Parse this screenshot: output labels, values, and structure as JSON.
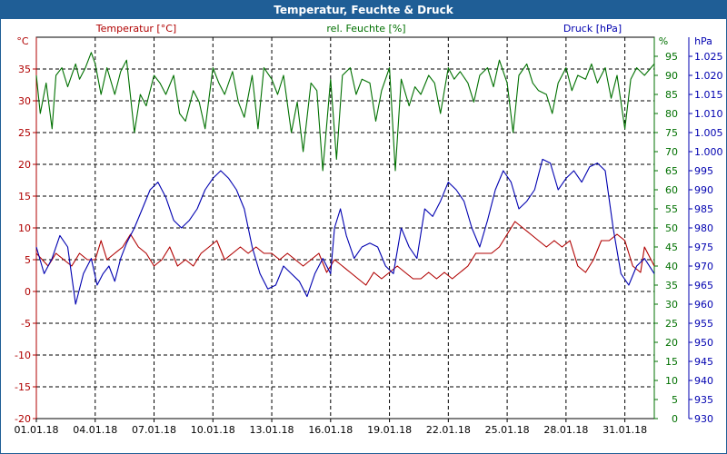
{
  "chart_data": {
    "type": "line",
    "title": "Temperatur, Feuchte & Druck",
    "colors": {
      "temperature": "#b00000",
      "humidity": "#007000",
      "pressure": "#0000b0",
      "title_bar": "#1f5e96",
      "grid": "#000000"
    },
    "axes": {
      "temperature": {
        "label": "Temperatur [°C]",
        "unit": "°C",
        "range": [
          -20,
          40
        ],
        "ticks": [
          "35",
          "30",
          "25",
          "20",
          "15",
          "10",
          "5",
          "0",
          "-5",
          "-10",
          "-15",
          "-20"
        ]
      },
      "humidity": {
        "label": "rel. Feuchte [%]",
        "unit": "%",
        "range": [
          0,
          100
        ],
        "ticks": [
          "95",
          "90",
          "85",
          "80",
          "75",
          "70",
          "65",
          "60",
          "55",
          "50",
          "45",
          "40",
          "35",
          "30",
          "25",
          "20",
          "15",
          "10",
          "5",
          "0"
        ]
      },
      "pressure": {
        "label": "Druck [hPa]",
        "unit": "hPa",
        "range": [
          930,
          1030
        ],
        "ticks": [
          "1.025",
          "1.020",
          "1.015",
          "1.010",
          "1.005",
          "1.000",
          "995",
          "990",
          "985",
          "980",
          "975",
          "970",
          "965",
          "960",
          "955",
          "950",
          "945",
          "940",
          "935",
          "930"
        ]
      }
    },
    "x_ticks": [
      "01.01.18",
      "04.01.18",
      "07.01.18",
      "10.01.18",
      "13.01.18",
      "16.01.18",
      "19.01.18",
      "22.01.18",
      "25.01.18",
      "28.01.18",
      "31.01.18"
    ],
    "x_day_range": [
      0,
      31.5
    ],
    "series": [
      {
        "name": "Temperatur",
        "axis": "temperature",
        "day": [
          0,
          0.3,
          0.6,
          1,
          1.4,
          1.8,
          2.2,
          2.6,
          3,
          3.3,
          3.6,
          4,
          4.4,
          4.8,
          5.2,
          5.6,
          6,
          6.4,
          6.8,
          7.2,
          7.6,
          8,
          8.4,
          8.8,
          9.2,
          9.6,
          10,
          10.4,
          10.8,
          11.2,
          11.6,
          12,
          12.4,
          12.8,
          13.2,
          13.6,
          14,
          14.4,
          14.8,
          15.2,
          15.6,
          16,
          16.4,
          16.8,
          17.2,
          17.6,
          18,
          18.4,
          18.8,
          19.2,
          19.6,
          20,
          20.4,
          20.8,
          21.2,
          21.6,
          22,
          22.4,
          22.8,
          23.2,
          23.6,
          24,
          24.4,
          24.8,
          25.2,
          25.6,
          26,
          26.4,
          26.8,
          27.2,
          27.6,
          28,
          28.4,
          28.8,
          29.2,
          29.6,
          30,
          30.4,
          30.8,
          31,
          31.5
        ],
        "values": [
          6,
          5,
          4,
          6,
          5,
          4,
          6,
          5,
          5,
          8,
          5,
          6,
          7,
          9,
          7,
          6,
          4,
          5,
          7,
          4,
          5,
          4,
          6,
          7,
          8,
          5,
          6,
          7,
          6,
          7,
          6,
          6,
          5,
          6,
          5,
          4,
          5,
          6,
          3,
          5,
          4,
          3,
          2,
          1,
          3,
          2,
          3,
          4,
          3,
          2,
          2,
          3,
          2,
          3,
          2,
          3,
          4,
          6,
          6,
          6,
          7,
          9,
          11,
          10,
          9,
          8,
          7,
          8,
          7,
          8,
          4,
          3,
          5,
          8,
          8,
          9,
          8,
          4,
          3,
          7,
          4
        ]
      },
      {
        "name": "rel. Feuchte",
        "axis": "humidity",
        "day": [
          0,
          0.2,
          0.5,
          0.8,
          1,
          1.3,
          1.6,
          2,
          2.2,
          2.5,
          2.8,
          3,
          3.3,
          3.6,
          4,
          4.3,
          4.6,
          5,
          5.3,
          5.6,
          6,
          6.3,
          6.6,
          7,
          7.3,
          7.6,
          8,
          8.3,
          8.6,
          9,
          9.3,
          9.6,
          10,
          10.3,
          10.6,
          11,
          11.3,
          11.6,
          12,
          12.3,
          12.6,
          13,
          13.3,
          13.6,
          14,
          14.3,
          14.6,
          15,
          15.3,
          15.6,
          16,
          16.3,
          16.6,
          17,
          17.3,
          17.6,
          18,
          18.3,
          18.6,
          19,
          19.3,
          19.6,
          20,
          20.3,
          20.6,
          21,
          21.3,
          21.6,
          22,
          22.3,
          22.6,
          23,
          23.3,
          23.6,
          24,
          24.3,
          24.6,
          25,
          25.3,
          25.6,
          26,
          26.3,
          26.6,
          27,
          27.3,
          27.6,
          28,
          28.3,
          28.6,
          29,
          29.3,
          29.6,
          30,
          30.3,
          30.6,
          31,
          31.5
        ],
        "values": [
          90,
          80,
          88,
          76,
          90,
          92,
          87,
          93,
          89,
          92,
          96,
          93,
          85,
          92,
          85,
          91,
          94,
          75,
          85,
          82,
          90,
          88,
          85,
          90,
          80,
          78,
          86,
          83,
          76,
          92,
          88,
          85,
          91,
          83,
          79,
          90,
          76,
          92,
          89,
          85,
          90,
          75,
          83,
          70,
          88,
          86,
          65,
          89,
          68,
          90,
          92,
          85,
          89,
          88,
          78,
          86,
          92,
          65,
          89,
          82,
          87,
          85,
          90,
          88,
          80,
          92,
          89,
          91,
          88,
          83,
          90,
          92,
          87,
          94,
          88,
          75,
          90,
          93,
          88,
          86,
          85,
          80,
          88,
          92,
          86,
          90,
          89,
          93,
          88,
          92,
          84,
          90,
          76,
          89,
          92,
          90,
          93
        ]
      },
      {
        "name": "Druck",
        "axis": "pressure",
        "day": [
          0,
          0.4,
          0.8,
          1.2,
          1.6,
          2,
          2.4,
          2.8,
          3.1,
          3.4,
          3.7,
          4,
          4.3,
          4.6,
          5,
          5.4,
          5.8,
          6.2,
          6.6,
          7,
          7.4,
          7.8,
          8.2,
          8.6,
          9,
          9.4,
          9.8,
          10.2,
          10.6,
          11,
          11.4,
          11.8,
          12.2,
          12.6,
          13,
          13.4,
          13.8,
          14.2,
          14.6,
          15,
          15.2,
          15.5,
          15.8,
          16.2,
          16.6,
          17,
          17.4,
          17.8,
          18.2,
          18.6,
          19,
          19.4,
          19.8,
          20.2,
          20.6,
          21,
          21.4,
          21.8,
          22.2,
          22.6,
          23,
          23.4,
          23.8,
          24.2,
          24.6,
          25,
          25.4,
          25.8,
          26.2,
          26.6,
          27,
          27.4,
          27.8,
          28.2,
          28.6,
          29,
          29.4,
          29.8,
          30.2,
          30.6,
          31,
          31.5
        ],
        "values": [
          975,
          968,
          972,
          978,
          975,
          960,
          968,
          972,
          965,
          968,
          970,
          966,
          972,
          976,
          980,
          985,
          990,
          992,
          988,
          982,
          980,
          982,
          985,
          990,
          993,
          995,
          993,
          990,
          985,
          975,
          968,
          964,
          965,
          970,
          968,
          966,
          962,
          968,
          972,
          968,
          980,
          985,
          978,
          972,
          975,
          976,
          975,
          970,
          968,
          980,
          975,
          972,
          985,
          983,
          987,
          992,
          990,
          987,
          980,
          975,
          982,
          990,
          995,
          992,
          985,
          987,
          990,
          998,
          997,
          990,
          993,
          995,
          992,
          996,
          997,
          995,
          980,
          968,
          965,
          970,
          972,
          968
        ]
      }
    ]
  }
}
